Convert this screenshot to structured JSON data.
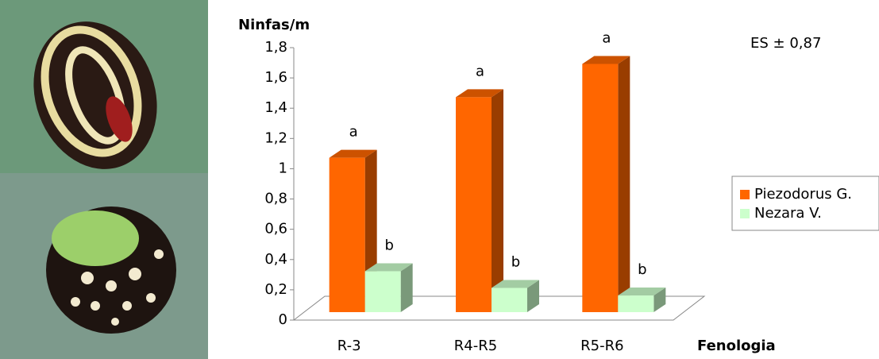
{
  "chart_data": {
    "type": "bar3d",
    "y_label": "Ninfas/m",
    "x_label": "Fenologia",
    "annotation": "ES ± 0,87",
    "categories": [
      "R-3",
      "R4-R5",
      "R5-R6"
    ],
    "series": [
      {
        "name": "Piezodorus G.",
        "color": "#ff6600",
        "values": [
          1.02,
          1.42,
          1.64
        ],
        "annotations": [
          "a",
          "a",
          "a"
        ]
      },
      {
        "name": "Nezara V.",
        "color": "#ccffcc",
        "values": [
          0.27,
          0.16,
          0.11
        ],
        "annotations": [
          "b",
          "b",
          "b"
        ]
      }
    ],
    "ylim": [
      0,
      1.8
    ],
    "yticks": [
      0,
      {
        "value": 0.2,
        "label": "0,2"
      },
      {
        "value": 0.4,
        "label": "0,4"
      },
      {
        "value": 0.6,
        "label": "0,6"
      },
      {
        "value": 0.8,
        "label": "0,8"
      },
      1,
      {
        "value": 1.2,
        "label": "1,2"
      },
      {
        "value": 1.4,
        "label": "1,4"
      },
      {
        "value": 1.6,
        "label": "1,6"
      },
      {
        "value": 1.8,
        "label": "1,8"
      }
    ],
    "legend": "right"
  }
}
